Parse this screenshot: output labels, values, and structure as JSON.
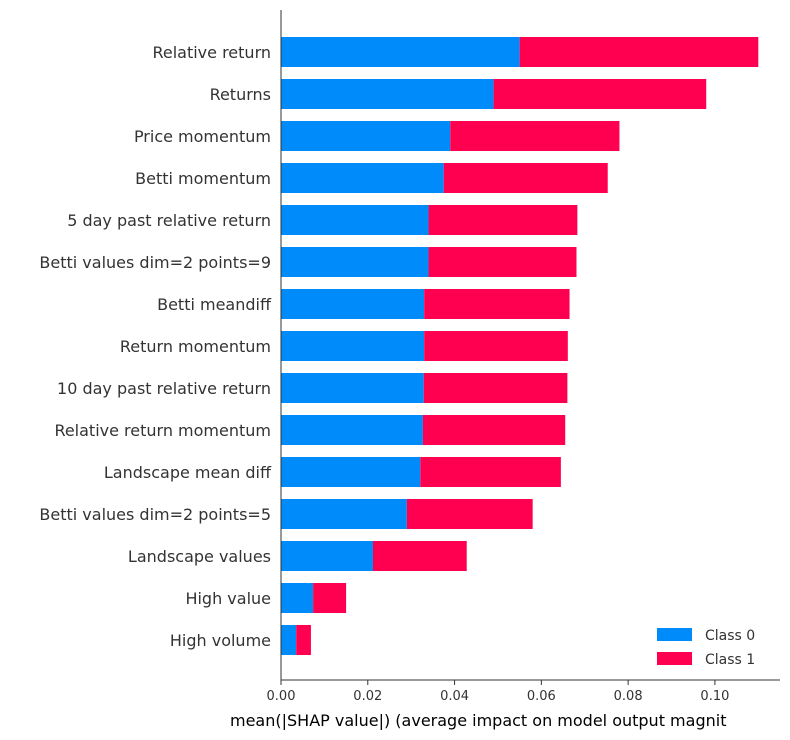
{
  "chart_data": {
    "type": "bar",
    "orientation": "horizontal",
    "stacked": true,
    "categories": [
      "Relative return",
      "Returns",
      "Price momentum",
      "Betti momentum",
      "5 day past relative return",
      "Betti values dim=2 points=9",
      "Betti meandiff",
      "Return momentum",
      "10 day past relative return",
      "Relative return momentum",
      "Landscape mean diff",
      "Betti values dim=2 points=5",
      "Landscape values",
      "High value",
      "High volume"
    ],
    "series": [
      {
        "name": "Class 0",
        "color": "#008bfb",
        "values": [
          0.055,
          0.049,
          0.039,
          0.0375,
          0.034,
          0.034,
          0.033,
          0.033,
          0.0329,
          0.0327,
          0.0321,
          0.029,
          0.0212,
          0.0074,
          0.0035
        ]
      },
      {
        "name": "Class 1",
        "color": "#ff0051",
        "values": [
          0.055,
          0.049,
          0.039,
          0.0378,
          0.0343,
          0.0341,
          0.0335,
          0.0331,
          0.0331,
          0.0328,
          0.0324,
          0.029,
          0.0216,
          0.0076,
          0.0034
        ]
      }
    ],
    "xlim": [
      0,
      0.115
    ],
    "xticks": [
      "0.00",
      "0.02",
      "0.04",
      "0.06",
      "0.08",
      "0.10"
    ],
    "xlabel": "mean(|SHAP value|) (average impact on model output magnit",
    "ylabel": "",
    "title": "",
    "grid": false,
    "legend_position": "bottom-right"
  }
}
